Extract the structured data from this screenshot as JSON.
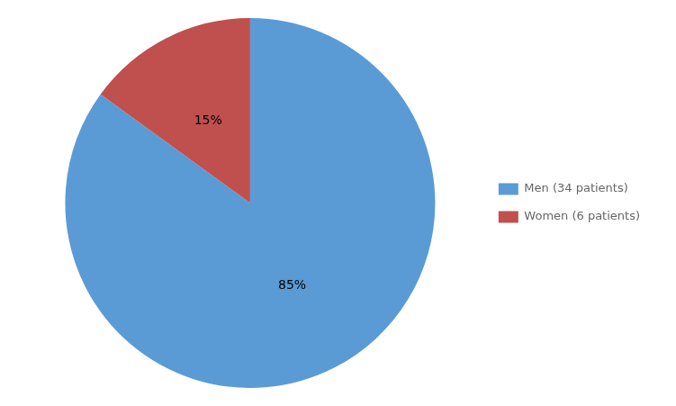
{
  "chart_data": {
    "type": "pie",
    "categories": [
      "Men (34 patients)",
      "Women (6 patients)"
    ],
    "values": [
      85,
      15
    ],
    "value_labels": [
      "85%",
      "15%"
    ],
    "colors": [
      "#5B9BD5",
      "#C0504D"
    ],
    "data_labels": true,
    "legend": "right"
  }
}
